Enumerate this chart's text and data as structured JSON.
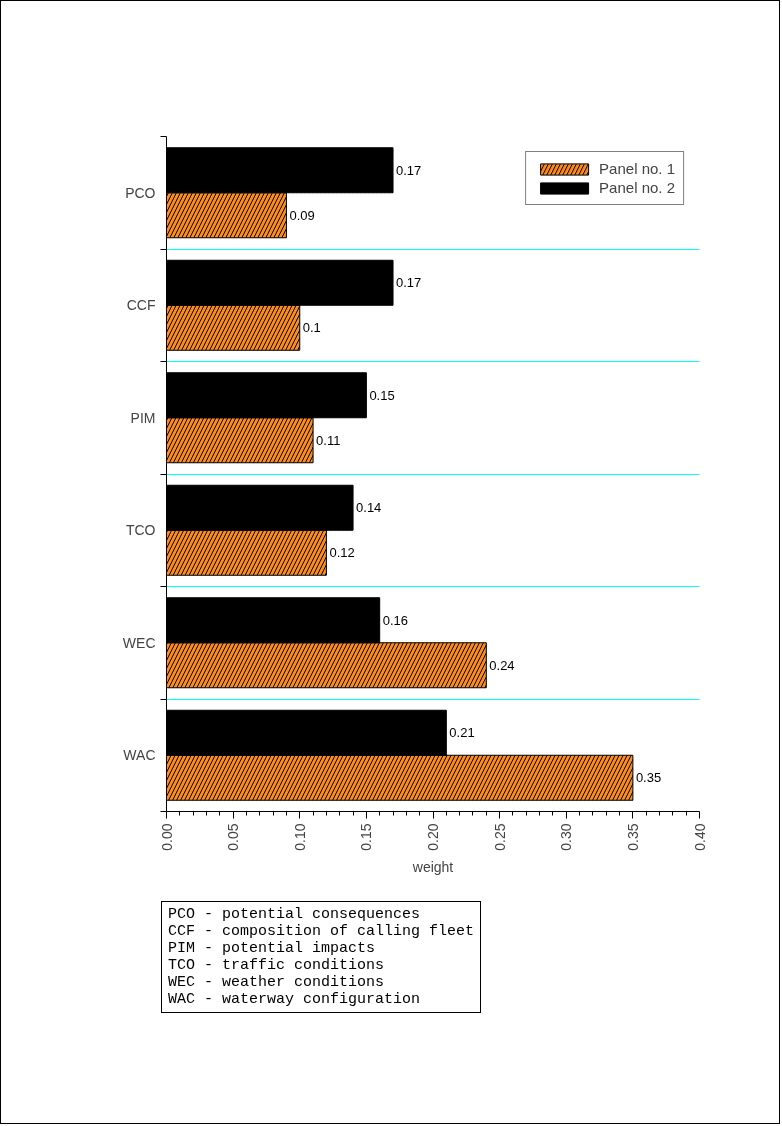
{
  "chart_data": {
    "type": "bar",
    "orientation": "horizontal",
    "categories": [
      "PCO",
      "CCF",
      "PIM",
      "TCO",
      "WEC",
      "WAC"
    ],
    "series": [
      {
        "name": "Panel no. 1",
        "color": "#ff8c1a",
        "values": [
          0.09,
          0.1,
          0.11,
          0.12,
          0.24,
          0.35
        ]
      },
      {
        "name": "Panel no. 2",
        "color": "#000000",
        "values": [
          0.17,
          0.17,
          0.15,
          0.14,
          0.16,
          0.21
        ]
      }
    ],
    "xlabel": "weight",
    "xlim": [
      0,
      0.4
    ],
    "xticks": [
      {
        "value": 0,
        "label": "0.00"
      },
      {
        "value": 0.05,
        "label": "0.05"
      },
      {
        "value": 0.1,
        "label": "0.10"
      },
      {
        "value": 0.15,
        "label": "0.15"
      },
      {
        "value": 0.2,
        "label": "0.20"
      },
      {
        "value": 0.25,
        "label": "0.25"
      },
      {
        "value": 0.3,
        "label": "0.30"
      },
      {
        "value": 0.35,
        "label": "0.35"
      },
      {
        "value": 0.4,
        "label": "0.40"
      }
    ],
    "data_labels": true,
    "grid": "y",
    "legend": "top right",
    "annotations": [
      "PCO - potential consequences",
      "CCF - composition of calling fleet",
      "PIM - potential impacts",
      "TCO - traffic conditions",
      "WEC - weather conditions",
      "WAC - waterway configuration"
    ]
  }
}
